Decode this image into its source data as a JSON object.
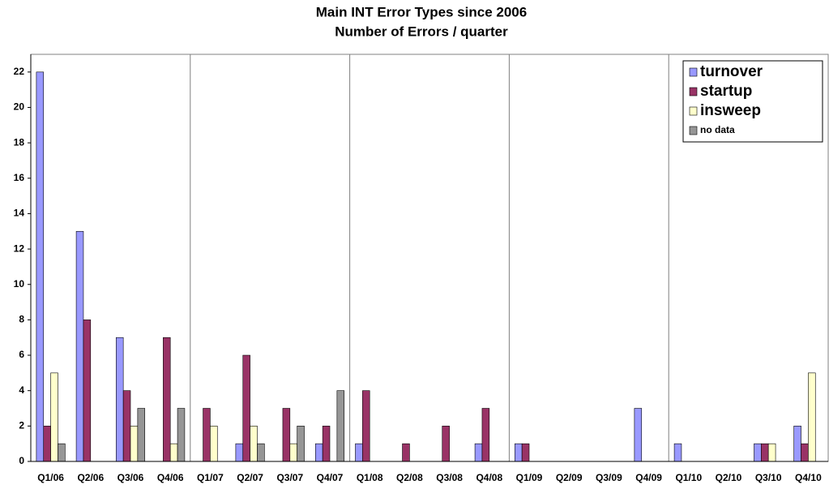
{
  "chart_data": {
    "type": "bar",
    "title": "Main INT Error Types since 2006",
    "subtitle": "Number of Errors / quarter",
    "categories": [
      "Q1/06",
      "Q2/06",
      "Q3/06",
      "Q4/06",
      "Q1/07",
      "Q2/07",
      "Q3/07",
      "Q4/07",
      "Q1/08",
      "Q2/08",
      "Q3/08",
      "Q4/08",
      "Q1/09",
      "Q2/09",
      "Q3/09",
      "Q4/09",
      "Q1/10",
      "Q2/10",
      "Q3/10",
      "Q4/10"
    ],
    "series": [
      {
        "name": "turnover",
        "color": "#9999ff",
        "values": [
          22,
          13,
          7,
          0,
          0,
          1,
          0,
          1,
          1,
          0,
          0,
          1,
          1,
          0,
          0,
          3,
          1,
          0,
          1,
          2
        ]
      },
      {
        "name": "startup",
        "color": "#993366",
        "values": [
          2,
          8,
          4,
          7,
          3,
          6,
          3,
          2,
          4,
          1,
          2,
          3,
          1,
          0,
          0,
          0,
          0,
          0,
          1,
          1
        ]
      },
      {
        "name": "insweep",
        "color": "#ffffcc",
        "values": [
          5,
          0,
          2,
          1,
          2,
          2,
          1,
          0,
          0,
          0,
          0,
          0,
          0,
          0,
          0,
          0,
          0,
          0,
          1,
          5
        ]
      },
      {
        "name": "no data",
        "color": "#969696",
        "values": [
          1,
          0,
          3,
          3,
          0,
          1,
          2,
          4,
          0,
          0,
          0,
          0,
          0,
          0,
          0,
          0,
          0,
          0,
          0,
          0
        ]
      }
    ],
    "ylim": [
      0,
      23
    ],
    "yticks": [
      0,
      2,
      4,
      6,
      8,
      10,
      12,
      14,
      16,
      18,
      20,
      22
    ],
    "legend": "top-right"
  }
}
